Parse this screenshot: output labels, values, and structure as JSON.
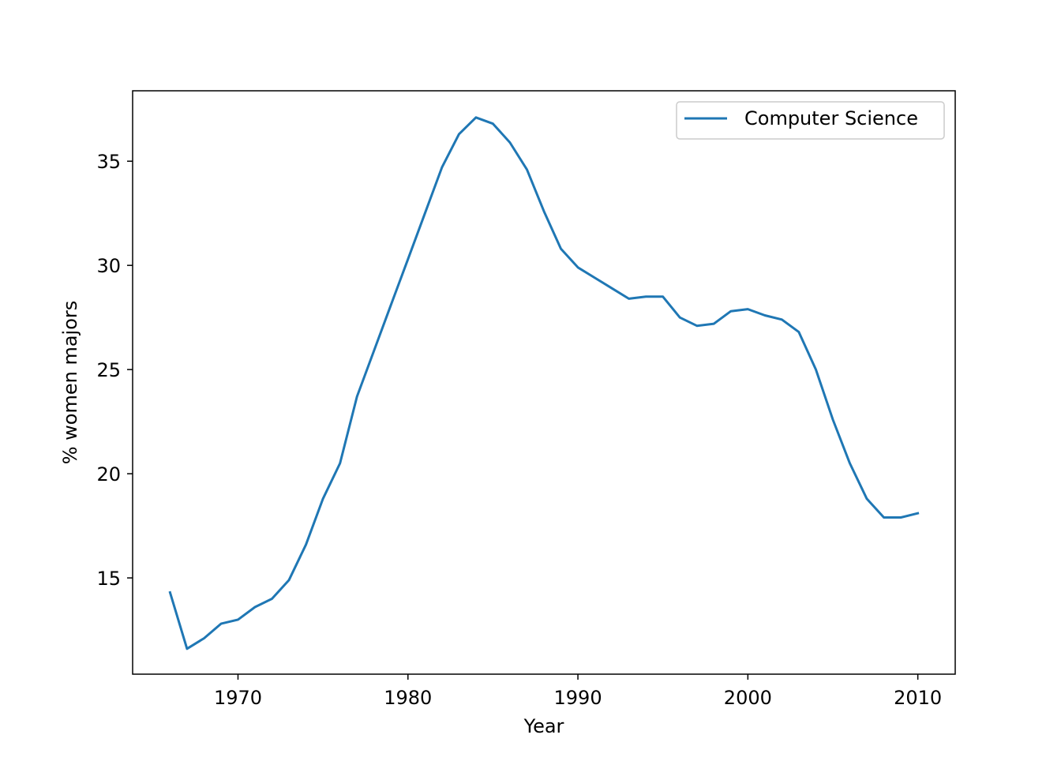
{
  "chart_data": {
    "type": "line",
    "title": "",
    "xlabel": "Year",
    "ylabel": "% women majors",
    "xlim": [
      1963.8,
      2012.2
    ],
    "ylim": [
      10.38,
      38.38
    ],
    "xticks": [
      1970,
      1980,
      1990,
      2000,
      2010
    ],
    "yticks": [
      15,
      20,
      25,
      30,
      35
    ],
    "xtick_labels": [
      "1970",
      "1980",
      "1990",
      "2000",
      "2010"
    ],
    "ytick_labels": [
      "15",
      "20",
      "25",
      "30",
      "35"
    ],
    "grid": false,
    "legend_position": "top-right",
    "series": [
      {
        "name": "Computer Science",
        "color": "#1f77b4",
        "x": [
          1966,
          1967,
          1968,
          1969,
          1970,
          1971,
          1972,
          1973,
          1974,
          1975,
          1976,
          1977,
          1978,
          1979,
          1980,
          1981,
          1982,
          1983,
          1984,
          1985,
          1986,
          1987,
          1988,
          1989,
          1990,
          1991,
          1992,
          1993,
          1994,
          1995,
          1996,
          1997,
          1998,
          1999,
          2000,
          2001,
          2002,
          2003,
          2004,
          2005,
          2006,
          2007,
          2008,
          2009,
          2010
        ],
        "values": [
          14.3,
          11.6,
          12.1,
          12.8,
          13.0,
          13.6,
          14.0,
          14.9,
          16.6,
          18.8,
          20.5,
          23.7,
          25.9,
          28.1,
          30.3,
          32.5,
          34.7,
          36.3,
          37.1,
          36.8,
          35.9,
          34.6,
          32.6,
          30.8,
          29.9,
          29.4,
          28.9,
          28.4,
          28.5,
          28.5,
          27.5,
          27.1,
          27.2,
          27.8,
          27.9,
          27.6,
          27.4,
          26.8,
          25.0,
          22.6,
          20.5,
          18.8,
          17.9,
          17.9,
          18.1
        ]
      }
    ]
  }
}
